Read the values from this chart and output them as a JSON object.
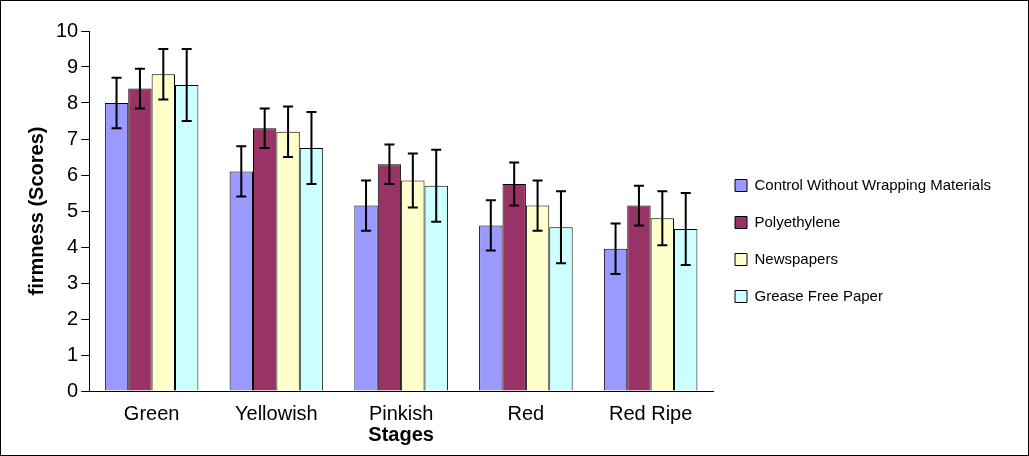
{
  "chart_data": {
    "type": "bar",
    "xlabel": "Stages",
    "ylabel": "firmness (Scores)",
    "categories": [
      "Green",
      "Yellowish",
      "Pinkish",
      "Red",
      "Red Ripe"
    ],
    "series": [
      {
        "name": "Control Without Wrapping Materials",
        "color": "#9999ff",
        "values": [
          8.0,
          6.1,
          5.15,
          4.6,
          3.95
        ],
        "errors": [
          0.7,
          0.7,
          0.7,
          0.7,
          0.7
        ]
      },
      {
        "name": "Polyethylene",
        "color": "#993366",
        "values": [
          8.4,
          7.3,
          6.3,
          5.75,
          5.15
        ],
        "errors": [
          0.55,
          0.55,
          0.55,
          0.6,
          0.55
        ]
      },
      {
        "name": "Newspapers",
        "color": "#ffffcc",
        "values": [
          8.8,
          7.2,
          5.85,
          5.15,
          4.8
        ],
        "errors": [
          0.7,
          0.7,
          0.75,
          0.7,
          0.75
        ]
      },
      {
        "name": "Grease Free Paper",
        "color": "#ccffff",
        "values": [
          8.5,
          6.75,
          5.7,
          4.55,
          4.5
        ],
        "errors": [
          1.0,
          1.0,
          1.0,
          1.0,
          1.0
        ]
      }
    ],
    "ylim": [
      0,
      10
    ],
    "yticks": [
      0,
      1,
      2,
      3,
      4,
      5,
      6,
      7,
      8,
      9,
      10
    ],
    "grid": false,
    "legend": "right"
  }
}
